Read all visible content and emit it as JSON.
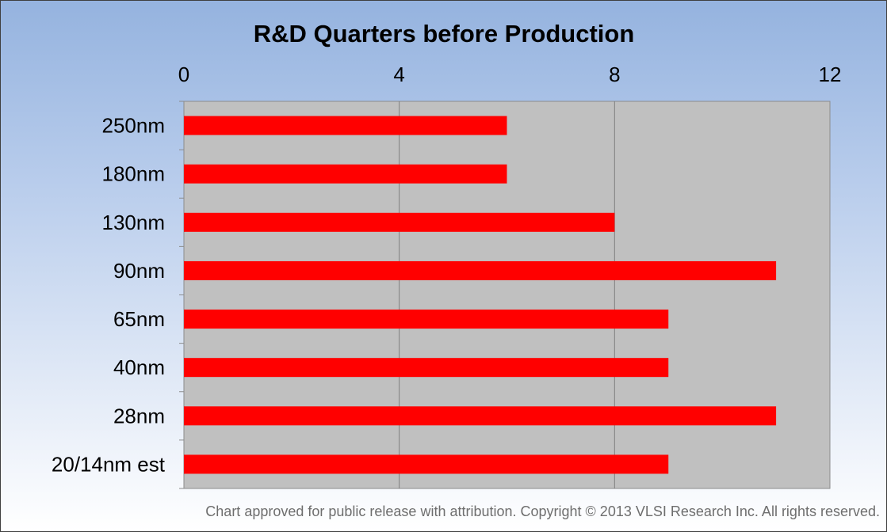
{
  "chart_data": {
    "type": "bar",
    "orientation": "horizontal",
    "title": "R&D Quarters before Production",
    "categories": [
      "250nm",
      "180nm",
      "130nm",
      "90nm",
      "65nm",
      "40nm",
      "28nm",
      "20/14nm est"
    ],
    "values": [
      6,
      6,
      8,
      11,
      9,
      9,
      11,
      9
    ],
    "xlim": [
      0,
      12
    ],
    "xticks": [
      "0",
      "4",
      "8",
      "12"
    ],
    "xaxis_position": "top",
    "grid": true,
    "legend": "none",
    "bar_color": "#ff0000",
    "plot_background": "#c0c0c0"
  },
  "footer": {
    "copyright": "Chart approved for public  release with attribution. Copyright © 2013 VLSI Research Inc.  All rights reserved."
  }
}
